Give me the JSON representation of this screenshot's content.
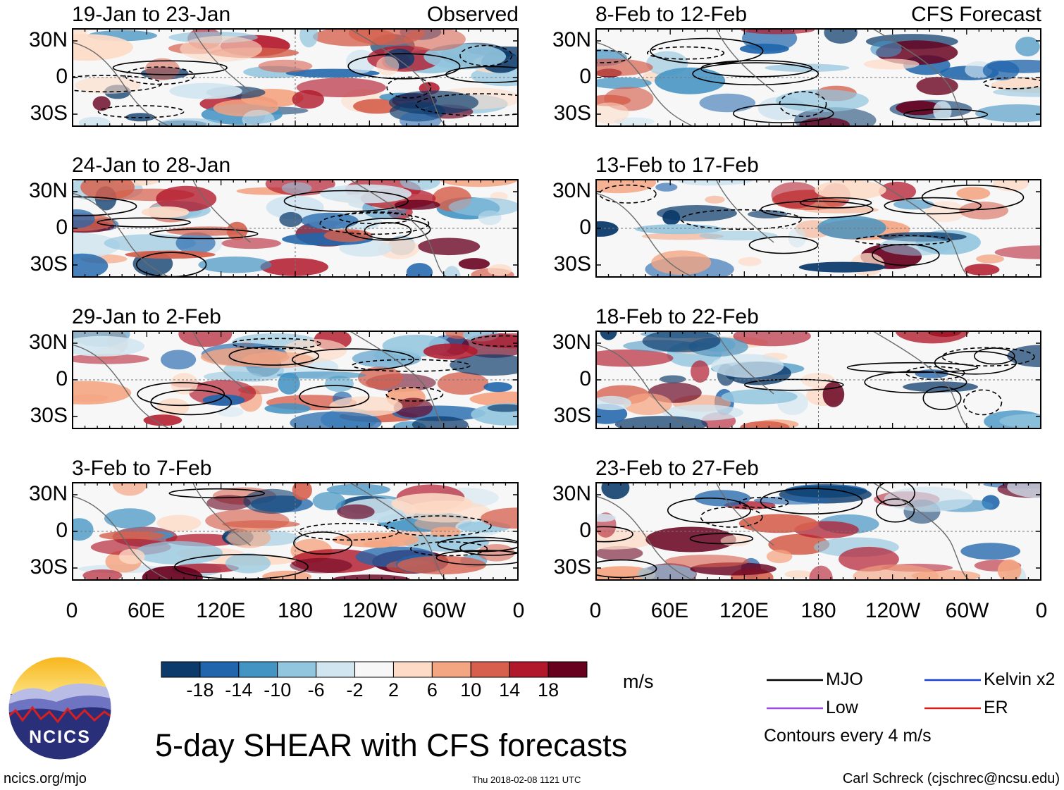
{
  "chart_data": {
    "type": "heatmap",
    "title": "5-day SHEAR with CFS forecasts",
    "units": "m/s",
    "lat_ticks": [
      "30N",
      "0",
      "30S"
    ],
    "lon_ticks": [
      "0",
      "60E",
      "120E",
      "180",
      "120W",
      "60W",
      "0"
    ],
    "colorbar": {
      "tick_labels": [
        "-18",
        "-14",
        "-10",
        "-6",
        "-2",
        "2",
        "6",
        "10",
        "14",
        "18"
      ],
      "colors": [
        "#0b3a6b",
        "#2166ac",
        "#4393c3",
        "#92c5de",
        "#d1e5f0",
        "#f7f7f7",
        "#fddbc7",
        "#f4a582",
        "#d6604d",
        "#b2182b",
        "#67001f"
      ]
    },
    "panels": [
      {
        "title": "19-Jan to 23-Jan",
        "label": "Observed",
        "group": "observed",
        "seed": 11
      },
      {
        "title": "24-Jan to 28-Jan",
        "label": "",
        "group": "observed",
        "seed": 23
      },
      {
        "title": "29-Jan to 2-Feb",
        "label": "",
        "group": "observed",
        "seed": 37
      },
      {
        "title": "3-Feb to 7-Feb",
        "label": "",
        "group": "observed",
        "seed": 41
      },
      {
        "title": "8-Feb to 12-Feb",
        "label": "CFS Forecast",
        "group": "forecast",
        "seed": 53
      },
      {
        "title": "13-Feb to 17-Feb",
        "label": "",
        "group": "forecast",
        "seed": 67
      },
      {
        "title": "18-Feb to 22-Feb",
        "label": "",
        "group": "forecast",
        "seed": 71
      },
      {
        "title": "23-Feb to 27-Feb",
        "label": "",
        "group": "forecast",
        "seed": 89
      }
    ],
    "legend": [
      {
        "name": "MJO",
        "color": "#000000"
      },
      {
        "name": "Kelvin x2",
        "color": "#1f3fd1"
      },
      {
        "name": "Low",
        "color": "#9b4ddb"
      },
      {
        "name": "ER",
        "color": "#d62020"
      }
    ],
    "contour_note": "Contours every 4 m/s"
  },
  "footer": {
    "logo_text": "NCICS",
    "website": "ncics.org/mjo",
    "timestamp": "Thu 2018-02-08 1121 UTC",
    "credit": "Carl Schreck (cjschrec@ncsu.edu)"
  }
}
